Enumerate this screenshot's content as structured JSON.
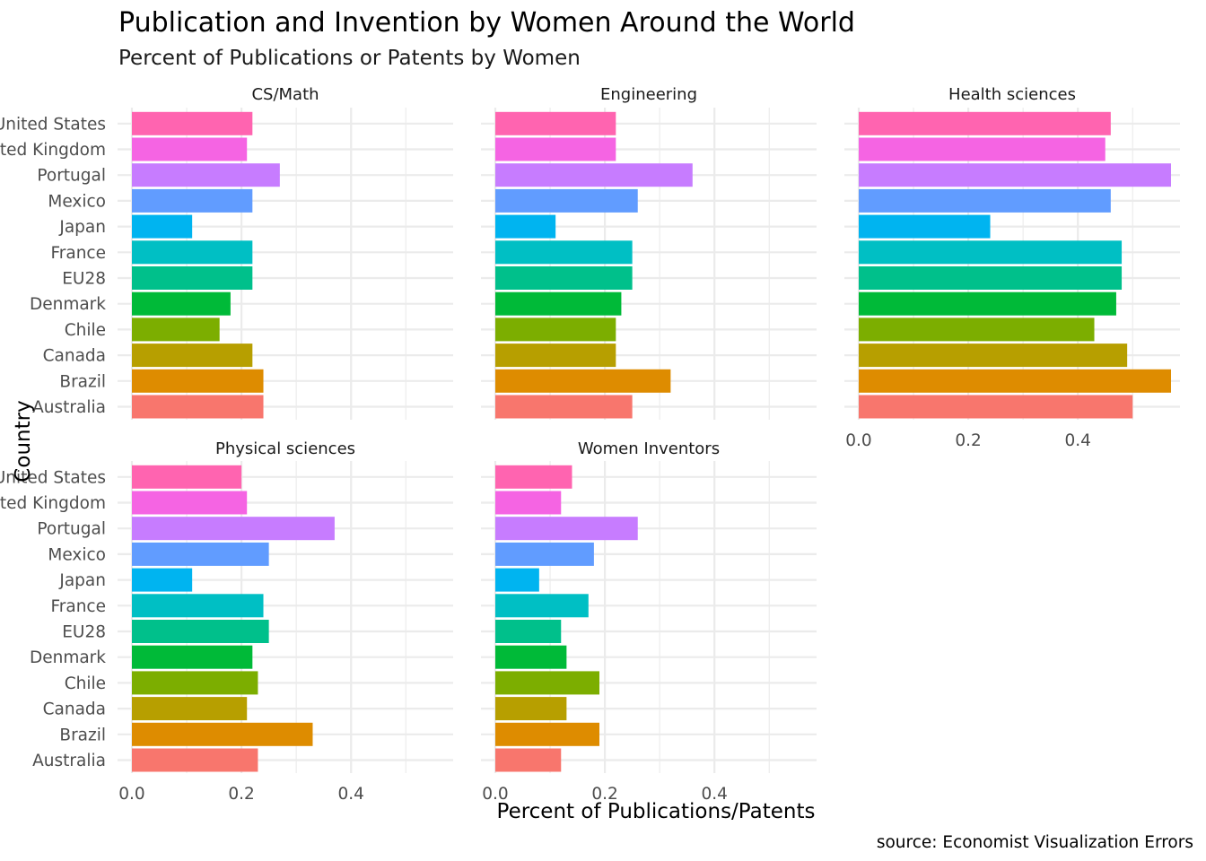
{
  "chart_data": {
    "type": "bar",
    "orientation": "horizontal",
    "title": "Publication and Invention by Women Around the World",
    "subtitle": "Percent of Publications or Patents by Women",
    "xlabel": "Percent of Publications/Patents",
    "ylabel": "Country",
    "caption": "source: Economist Visualization Errors",
    "xlim": [
      0,
      0.57
    ],
    "xticks": [
      0.0,
      0.2,
      0.4
    ],
    "xtick_labels": [
      "0.0",
      "0.2",
      "0.4"
    ],
    "grid": true,
    "legend": "none",
    "categories": [
      "Australia",
      "Brazil",
      "Canada",
      "Chile",
      "Denmark",
      "EU28",
      "France",
      "Japan",
      "Mexico",
      "Portugal",
      "United Kingdom",
      "United States"
    ],
    "category_labels": [
      "Australia",
      "Brazil",
      "Canada",
      "Chile",
      "Denmark",
      "EU28",
      "France",
      "Japan",
      "Mexico",
      "Portugal",
      "ted Kingdom",
      "United States"
    ],
    "colors": [
      "#F8766D",
      "#DE8C00",
      "#B79F00",
      "#7CAE00",
      "#00BA38",
      "#00C08B",
      "#00BFC4",
      "#00B4F0",
      "#619CFF",
      "#C77CFF",
      "#F564E3",
      "#FF64B0"
    ],
    "facets": [
      {
        "name": "CS/Math",
        "values": [
          0.24,
          0.24,
          0.22,
          0.16,
          0.18,
          0.22,
          0.22,
          0.11,
          0.22,
          0.27,
          0.21,
          0.22
        ]
      },
      {
        "name": "Engineering",
        "values": [
          0.25,
          0.32,
          0.22,
          0.22,
          0.23,
          0.25,
          0.25,
          0.11,
          0.26,
          0.36,
          0.22,
          0.22
        ]
      },
      {
        "name": "Health sciences",
        "values": [
          0.5,
          0.57,
          0.49,
          0.43,
          0.47,
          0.48,
          0.48,
          0.24,
          0.46,
          0.57,
          0.45,
          0.46
        ]
      },
      {
        "name": "Physical sciences",
        "values": [
          0.23,
          0.33,
          0.21,
          0.23,
          0.22,
          0.25,
          0.24,
          0.11,
          0.25,
          0.37,
          0.21,
          0.2
        ]
      },
      {
        "name": "Women Inventors",
        "values": [
          0.12,
          0.19,
          0.13,
          0.19,
          0.13,
          0.12,
          0.17,
          0.08,
          0.18,
          0.26,
          0.12,
          0.14
        ]
      }
    ]
  }
}
